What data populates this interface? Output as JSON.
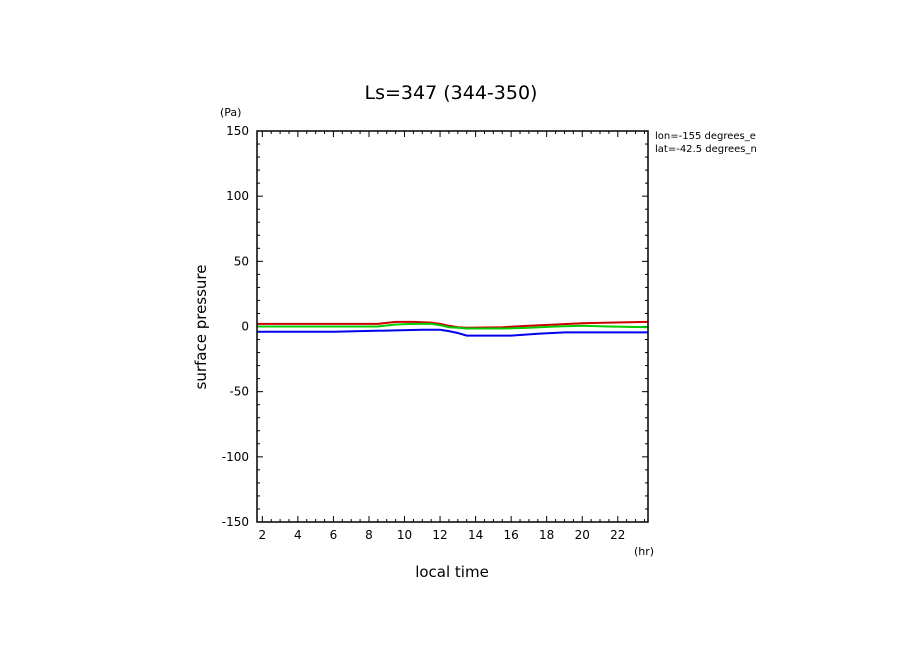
{
  "chart_data": {
    "type": "line",
    "title": "Ls=347 (344-350)",
    "xlabel": "local time",
    "ylabel": "surface pressure",
    "x_unit": "(hr)",
    "y_unit": "(Pa)",
    "annotations": [
      "lon=-155 degrees_e",
      "lat=-42.5 degrees_n"
    ],
    "xlim": [
      1.7,
      23.7
    ],
    "ylim": [
      -150,
      150
    ],
    "xticks": [
      2,
      4,
      6,
      8,
      10,
      12,
      14,
      16,
      18,
      20,
      22
    ],
    "yticks": [
      -150,
      -100,
      -50,
      0,
      50,
      100,
      150
    ],
    "grid": false,
    "series": [
      {
        "color": "#cc0000",
        "x": [
          1.7,
          8.5,
          9.5,
          10.5,
          11.5,
          12.0,
          12.5,
          13.0,
          13.5,
          15.5,
          17.0,
          18.5,
          20.0,
          21.5,
          23.7
        ],
        "y": [
          2.0,
          2.0,
          3.5,
          3.5,
          3.0,
          2.0,
          0.5,
          -0.5,
          -1.0,
          -0.5,
          0.5,
          1.5,
          2.5,
          3.0,
          3.5
        ]
      },
      {
        "color": "#00cc00",
        "x": [
          1.7,
          8.5,
          9.5,
          10.5,
          11.5,
          12.0,
          12.5,
          13.0,
          13.5,
          15.5,
          17.0,
          18.5,
          20.0,
          21.5,
          23.7
        ],
        "y": [
          0.0,
          0.0,
          1.5,
          2.0,
          2.0,
          1.0,
          -0.5,
          -1.0,
          -1.5,
          -1.5,
          -1.0,
          0.0,
          0.5,
          0.0,
          -0.5
        ]
      },
      {
        "color": "#0000ee",
        "x": [
          1.7,
          6.0,
          9.5,
          11.0,
          12.0,
          12.5,
          13.0,
          13.5,
          16.0,
          17.5,
          19.0,
          21.0,
          23.7
        ],
        "y": [
          -4.0,
          -4.0,
          -3.0,
          -2.5,
          -2.5,
          -3.5,
          -5.0,
          -7.0,
          -7.0,
          -5.5,
          -4.5,
          -4.5,
          -4.5
        ]
      }
    ]
  }
}
